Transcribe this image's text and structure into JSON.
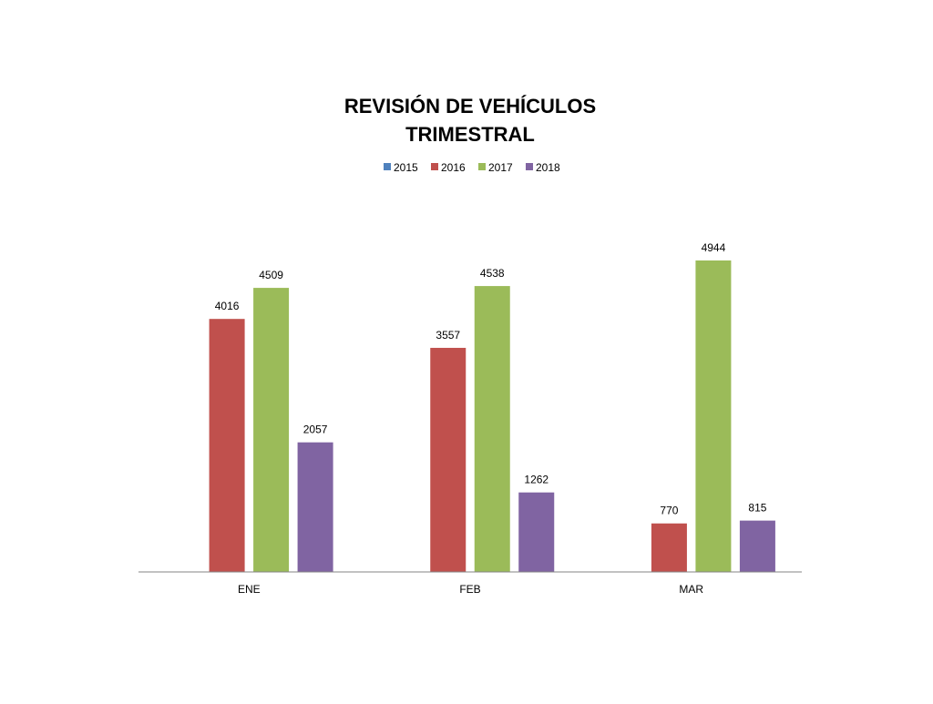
{
  "chart_data": {
    "type": "bar",
    "title": [
      "REVISIÓN DE VEHÍCULOS",
      "TRIMESTRAL"
    ],
    "categories": [
      "ENE",
      "FEB",
      "MAR"
    ],
    "series": [
      {
        "name": "2015",
        "color": "#4F81BD",
        "values": [
          0,
          0,
          0
        ]
      },
      {
        "name": "2016",
        "color": "#C0504D",
        "values": [
          4016,
          3557,
          770
        ]
      },
      {
        "name": "2017",
        "color": "#9BBB59",
        "values": [
          4509,
          4538,
          4944
        ]
      },
      {
        "name": "2018",
        "color": "#8064A2",
        "values": [
          2057,
          1262,
          815
        ]
      }
    ],
    "ylim": [
      0,
      5500
    ],
    "grid": false,
    "legend": "top"
  }
}
